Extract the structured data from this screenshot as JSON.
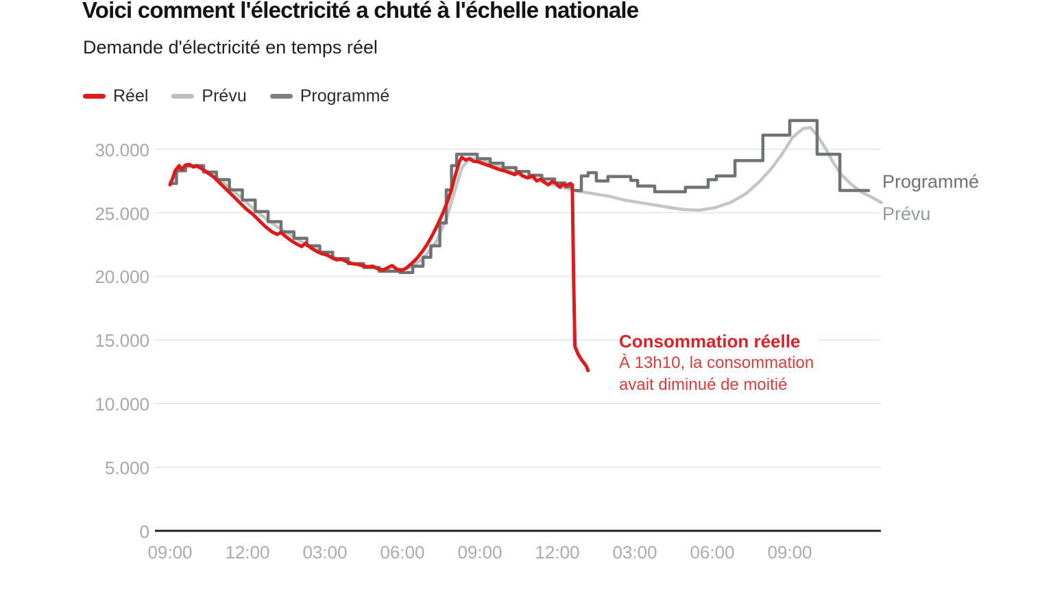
{
  "header": {
    "title": "Voici comment l'électricité a chuté à l'échelle nationale",
    "subtitle": "Demande d'électricité en temps réel"
  },
  "legend": {
    "items": [
      {
        "label": "Réel",
        "color": "#dc1c1c"
      },
      {
        "label": "Prévu",
        "color": "#bcc0bf"
      },
      {
        "label": "Programmé",
        "color": "#7d8281"
      }
    ]
  },
  "annotation": {
    "title": "Consommation réelle",
    "line1": "À 13h10, la consommation",
    "line2": "avait diminué de moitié"
  },
  "end_labels": {
    "programme": "Programmé",
    "prevu": "Prévu"
  },
  "colors": {
    "reel": "#dc1c1c",
    "prevu_line": "#c2c6c5",
    "programme_line": "#6f7372",
    "grid": "#e8eaea",
    "axis": "#222525",
    "tick_text": "#a7abab"
  },
  "chart_data": {
    "type": "line",
    "title": "Demande d'électricité en temps réel",
    "xlabel": "",
    "ylabel": "",
    "ylim": [
      0,
      33500
    ],
    "grid": "horizontal",
    "legend_position": "top-left",
    "y_ticks": [
      {
        "value": 0,
        "label": "0"
      },
      {
        "value": 5000,
        "label": "5.000"
      },
      {
        "value": 10000,
        "label": "10.000"
      },
      {
        "value": 15000,
        "label": "15.000"
      },
      {
        "value": 20000,
        "label": "20.000"
      },
      {
        "value": 25000,
        "label": "25.000"
      },
      {
        "value": 30000,
        "label": "30.000"
      }
    ],
    "x_ticks": [
      "09:00",
      "12:00",
      "03:00",
      "06:00",
      "09:00",
      "12:00",
      "03:00",
      "06:00",
      "09:00"
    ],
    "hours_per_tick": 3,
    "series": [
      {
        "name": "Prévu",
        "color": "#c2c6c5",
        "width": 4.5,
        "style": "line",
        "points": [
          [
            0,
            27400
          ],
          [
            0.4,
            28500
          ],
          [
            0.9,
            28700
          ],
          [
            1.3,
            28400
          ],
          [
            1.8,
            27800
          ],
          [
            2.3,
            27000
          ],
          [
            2.8,
            26100
          ],
          [
            3.3,
            25200
          ],
          [
            3.8,
            24400
          ],
          [
            4.3,
            23700
          ],
          [
            4.8,
            23100
          ],
          [
            5.3,
            22500
          ],
          [
            5.8,
            22000
          ],
          [
            6.3,
            21500
          ],
          [
            6.8,
            21200
          ],
          [
            7.3,
            20900
          ],
          [
            7.8,
            20700
          ],
          [
            8.3,
            20500
          ],
          [
            8.8,
            20400
          ],
          [
            9.3,
            20700
          ],
          [
            9.8,
            21400
          ],
          [
            10.3,
            22700
          ],
          [
            10.7,
            24500
          ],
          [
            11.0,
            26500
          ],
          [
            11.3,
            28500
          ],
          [
            11.6,
            29300
          ],
          [
            12.0,
            29200
          ],
          [
            12.4,
            28900
          ],
          [
            12.9,
            28500
          ],
          [
            13.4,
            28100
          ],
          [
            14.0,
            27700
          ],
          [
            14.6,
            27300
          ],
          [
            15.2,
            27000
          ],
          [
            15.8,
            26700
          ],
          [
            16.4,
            26500
          ],
          [
            17.0,
            26300
          ],
          [
            17.6,
            26000
          ],
          [
            18.2,
            25800
          ],
          [
            18.8,
            25600
          ],
          [
            19.4,
            25400
          ],
          [
            19.9,
            25250
          ],
          [
            20.5,
            25200
          ],
          [
            21.1,
            25400
          ],
          [
            21.7,
            25800
          ],
          [
            22.3,
            26500
          ],
          [
            22.8,
            27400
          ],
          [
            23.3,
            28500
          ],
          [
            23.7,
            29600
          ],
          [
            24.1,
            30900
          ],
          [
            24.5,
            31600
          ],
          [
            24.8,
            31700
          ],
          [
            25.1,
            31000
          ],
          [
            25.4,
            30000
          ],
          [
            25.7,
            28900
          ],
          [
            26.0,
            28000
          ],
          [
            26.4,
            27200
          ],
          [
            26.8,
            26600
          ],
          [
            27.2,
            26200
          ],
          [
            27.55,
            25800
          ]
        ]
      },
      {
        "name": "Programmé",
        "color": "#6f7372",
        "width": 4.5,
        "style": "step",
        "end_h": 27.05,
        "points": [
          [
            0,
            27300
          ],
          [
            0.25,
            28300
          ],
          [
            0.6,
            28700
          ],
          [
            1.3,
            28200
          ],
          [
            1.8,
            27600
          ],
          [
            2.3,
            26800
          ],
          [
            2.8,
            26000
          ],
          [
            3.3,
            25100
          ],
          [
            3.8,
            24300
          ],
          [
            4.3,
            23500
          ],
          [
            4.8,
            23000
          ],
          [
            5.3,
            22400
          ],
          [
            5.8,
            21900
          ],
          [
            6.3,
            21400
          ],
          [
            6.9,
            21000
          ],
          [
            7.5,
            20700
          ],
          [
            8.1,
            20400
          ],
          [
            8.9,
            20300
          ],
          [
            9.4,
            20800
          ],
          [
            9.8,
            21500
          ],
          [
            10.1,
            22400
          ],
          [
            10.45,
            24200
          ],
          [
            10.7,
            26800
          ],
          [
            10.9,
            28700
          ],
          [
            11.1,
            29600
          ],
          [
            11.9,
            29250
          ],
          [
            12.4,
            28900
          ],
          [
            12.9,
            28550
          ],
          [
            13.4,
            28250
          ],
          [
            13.9,
            27950
          ],
          [
            14.4,
            27650
          ],
          [
            14.9,
            27350
          ],
          [
            15.3,
            27050
          ],
          [
            15.58,
            26750
          ],
          [
            15.93,
            27900
          ],
          [
            16.19,
            28150
          ],
          [
            16.51,
            27500
          ],
          [
            16.96,
            27850
          ],
          [
            17.84,
            27550
          ],
          [
            18.11,
            27100
          ],
          [
            18.77,
            26650
          ],
          [
            19.96,
            27000
          ],
          [
            20.84,
            27600
          ],
          [
            21.16,
            27900
          ],
          [
            21.88,
            29100
          ],
          [
            22.96,
            31100
          ],
          [
            24.0,
            32250
          ],
          [
            25.06,
            29600
          ],
          [
            25.94,
            26750
          ]
        ]
      },
      {
        "name": "Réel",
        "color": "#dc1c1c",
        "width": 5,
        "style": "line",
        "points": [
          [
            0,
            27200
          ],
          [
            0.1,
            27700
          ],
          [
            0.2,
            28300
          ],
          [
            0.35,
            28700
          ],
          [
            0.45,
            28400
          ],
          [
            0.6,
            28750
          ],
          [
            0.75,
            28800
          ],
          [
            0.9,
            28600
          ],
          [
            1.05,
            28700
          ],
          [
            1.2,
            28500
          ],
          [
            1.45,
            28150
          ],
          [
            1.7,
            27800
          ],
          [
            1.95,
            27300
          ],
          [
            2.2,
            26800
          ],
          [
            2.45,
            26300
          ],
          [
            2.7,
            25800
          ],
          [
            2.95,
            25300
          ],
          [
            3.2,
            24900
          ],
          [
            3.45,
            24400
          ],
          [
            3.7,
            23900
          ],
          [
            3.95,
            23500
          ],
          [
            4.15,
            23300
          ],
          [
            4.3,
            23450
          ],
          [
            4.5,
            23100
          ],
          [
            4.7,
            22800
          ],
          [
            4.9,
            22550
          ],
          [
            5.1,
            22350
          ],
          [
            5.25,
            22600
          ],
          [
            5.45,
            22250
          ],
          [
            5.65,
            22000
          ],
          [
            5.85,
            21800
          ],
          [
            6.05,
            21700
          ],
          [
            6.25,
            21500
          ],
          [
            6.45,
            21300
          ],
          [
            6.65,
            21350
          ],
          [
            6.85,
            21150
          ],
          [
            7.05,
            21000
          ],
          [
            7.25,
            20950
          ],
          [
            7.45,
            20850
          ],
          [
            7.65,
            20750
          ],
          [
            7.85,
            20800
          ],
          [
            8.05,
            20600
          ],
          [
            8.25,
            20500
          ],
          [
            8.45,
            20700
          ],
          [
            8.6,
            20850
          ],
          [
            8.8,
            20550
          ],
          [
            9.0,
            20500
          ],
          [
            9.15,
            20650
          ],
          [
            9.35,
            21000
          ],
          [
            9.55,
            21400
          ],
          [
            9.75,
            21900
          ],
          [
            9.95,
            22500
          ],
          [
            10.15,
            23200
          ],
          [
            10.35,
            24000
          ],
          [
            10.55,
            24900
          ],
          [
            10.75,
            25900
          ],
          [
            10.9,
            26800
          ],
          [
            11.0,
            27600
          ],
          [
            11.1,
            28300
          ],
          [
            11.2,
            29000
          ],
          [
            11.3,
            29350
          ],
          [
            11.45,
            29150
          ],
          [
            11.6,
            29250
          ],
          [
            11.75,
            29050
          ],
          [
            11.95,
            29000
          ],
          [
            12.15,
            28850
          ],
          [
            12.35,
            28700
          ],
          [
            12.55,
            28550
          ],
          [
            12.75,
            28400
          ],
          [
            12.95,
            28300
          ],
          [
            13.15,
            28150
          ],
          [
            13.35,
            28000
          ],
          [
            13.5,
            28200
          ],
          [
            13.65,
            27900
          ],
          [
            13.85,
            27750
          ],
          [
            14.05,
            27900
          ],
          [
            14.2,
            27500
          ],
          [
            14.35,
            27650
          ],
          [
            14.5,
            27400
          ],
          [
            14.65,
            27200
          ],
          [
            14.8,
            27450
          ],
          [
            14.95,
            27300
          ],
          [
            15.1,
            27000
          ],
          [
            15.2,
            27250
          ],
          [
            15.35,
            27150
          ],
          [
            15.5,
            27300
          ],
          [
            15.58,
            27200
          ],
          [
            15.63,
            20000
          ],
          [
            15.68,
            14500
          ],
          [
            15.8,
            13900
          ],
          [
            15.95,
            13400
          ],
          [
            16.05,
            13150
          ],
          [
            16.12,
            12950
          ],
          [
            16.19,
            12600
          ]
        ]
      }
    ]
  }
}
